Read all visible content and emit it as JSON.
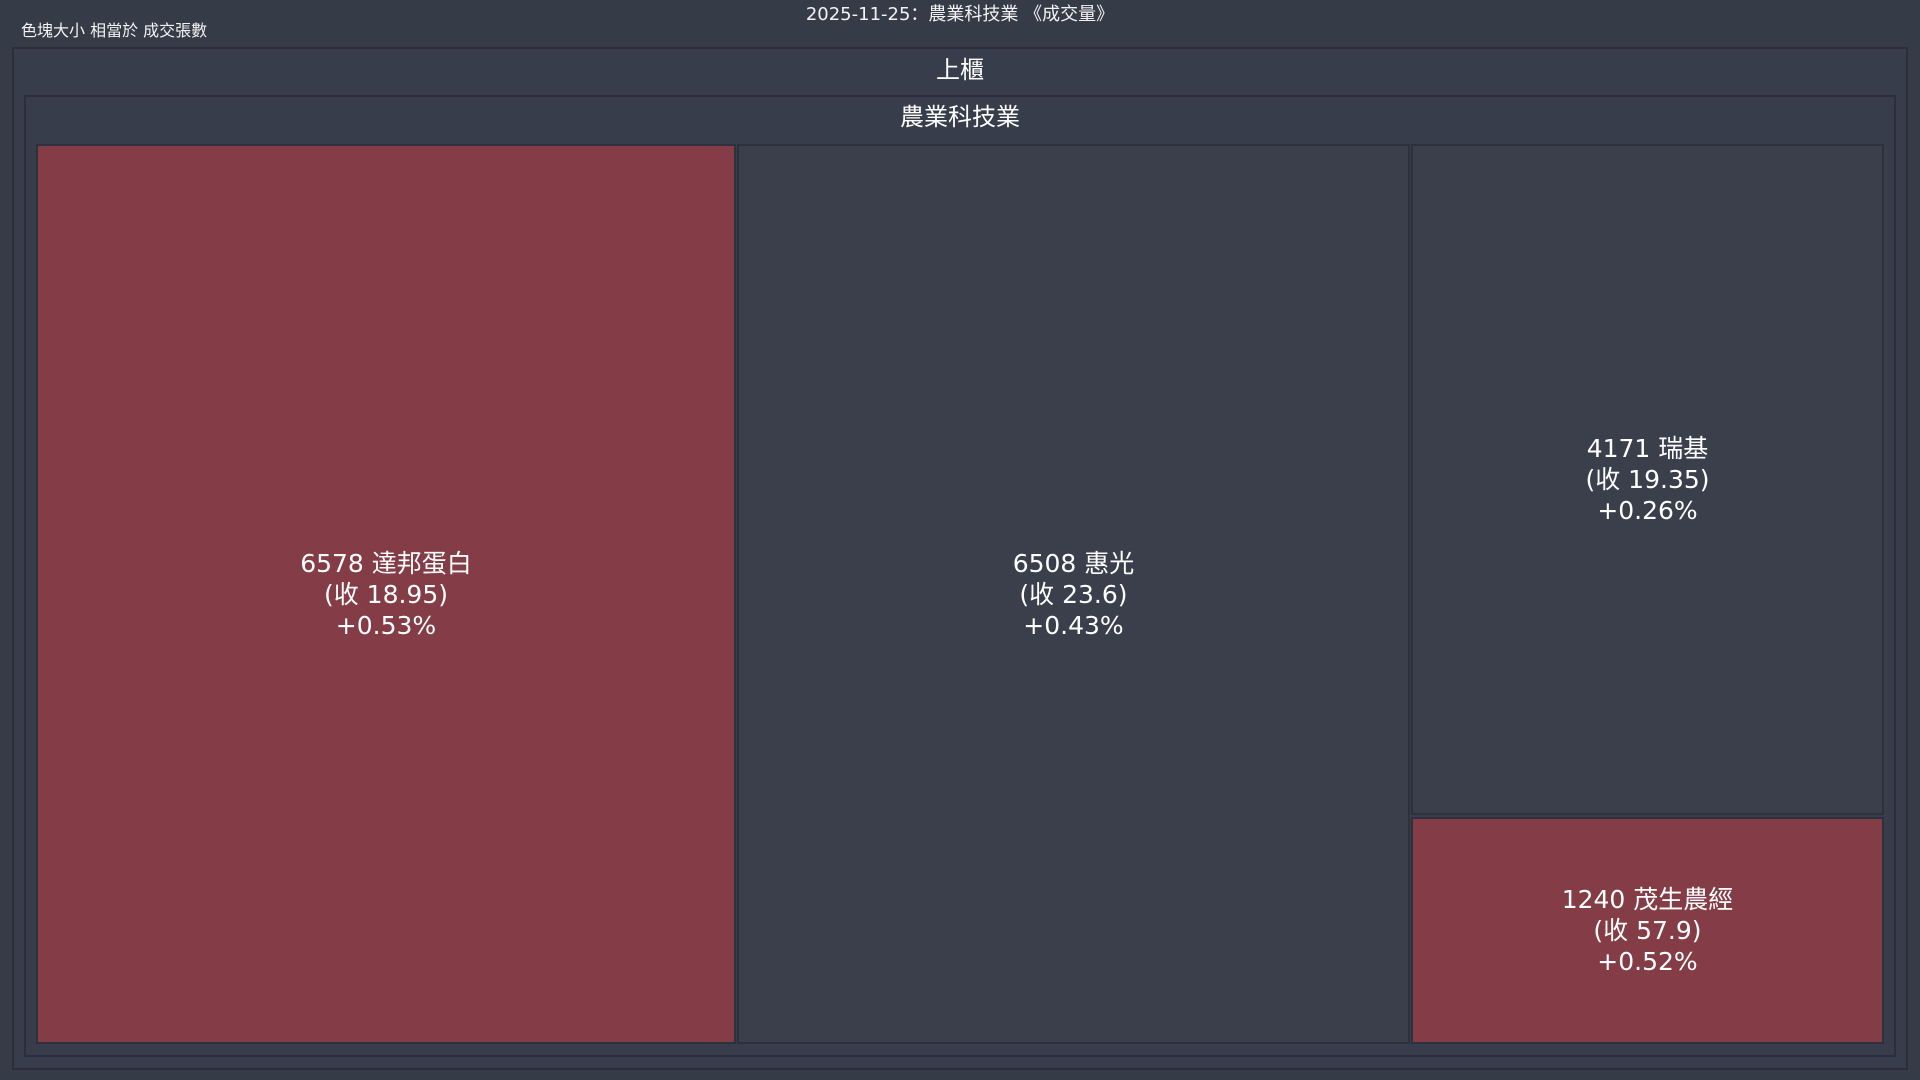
{
  "title": "2025-11-25：農業科技業 《成交量》",
  "size_note": "色塊大小 相當於 成交張數",
  "colors": {
    "background": "#353b47",
    "neutral": "#3a3f4b",
    "up": "#843d47"
  },
  "chart_data": {
    "type": "treemap",
    "root": "上櫃",
    "groups": [
      {
        "name": "農業科技業",
        "items": [
          {
            "code": "6578",
            "name": "達邦蛋白",
            "label": "6578 達邦蛋白",
            "close_label": "(收 18.95)",
            "close": 18.95,
            "change_label": "+0.53%",
            "change_pct": 0.53,
            "color": "#843d47"
          },
          {
            "code": "6508",
            "name": "惠光",
            "label": "6508 惠光",
            "close_label": "(收 23.6)",
            "close": 23.6,
            "change_label": "+0.43%",
            "change_pct": 0.43,
            "color": "#3a3f4b"
          },
          {
            "code": "4171",
            "name": "瑞基",
            "label": "4171 瑞基",
            "close_label": "(收 19.35)",
            "close": 19.35,
            "change_label": "+0.26%",
            "change_pct": 0.26,
            "color": "#3a3f4b"
          },
          {
            "code": "1240",
            "name": "茂生農經",
            "label": "1240 茂生農經",
            "close_label": "(收 57.9)",
            "close": 57.9,
            "change_label": "+0.52%",
            "change_pct": 0.52,
            "color": "#843d47"
          }
        ]
      }
    ]
  }
}
